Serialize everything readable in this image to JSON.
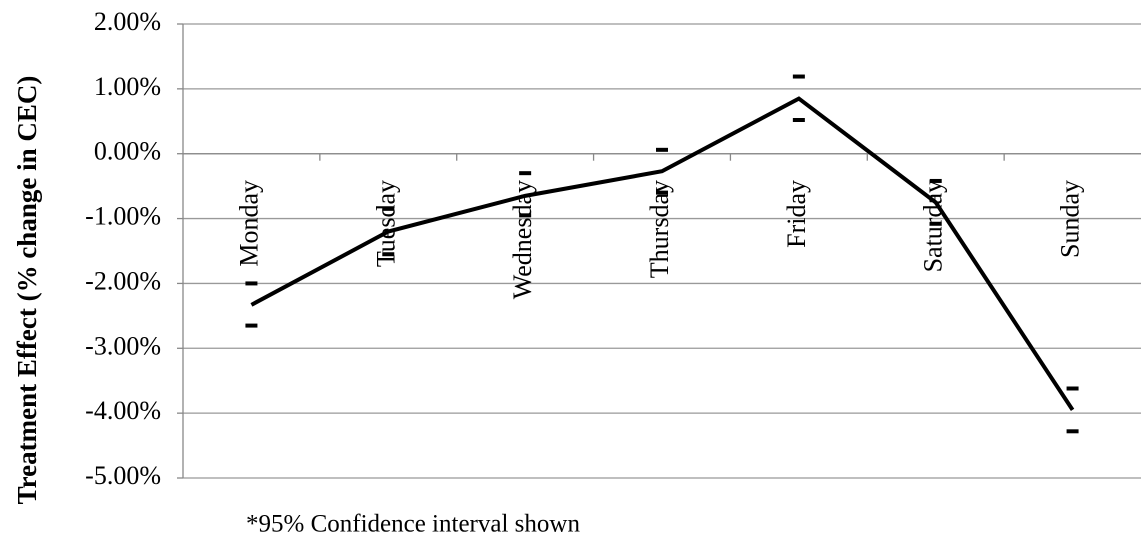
{
  "chart_data": {
    "type": "line",
    "y_label": "Treatment Effect (% change in CEC)",
    "note": "*95% Confidence interval shown",
    "categories": [
      "Monday",
      "Tuesday",
      "Wednesday",
      "Thursday",
      "Friday",
      "Saturday",
      "Sunday"
    ],
    "values": [
      -2.33,
      -1.2,
      -0.65,
      -0.27,
      0.85,
      -0.75,
      -3.95
    ],
    "ci_upper": [
      -2.0,
      -0.85,
      -0.3,
      0.06,
      1.19,
      -0.42,
      -3.62
    ],
    "ci_lower": [
      -2.65,
      -1.55,
      -0.95,
      -0.6,
      0.52,
      -1.08,
      -4.28
    ],
    "color": "#000000",
    "ylim": [
      -5,
      2
    ],
    "yticks": [
      {
        "value": -5,
        "label": "-5.00%"
      },
      {
        "value": -4,
        "label": "-4.00%"
      },
      {
        "value": -3,
        "label": "-3.00%"
      },
      {
        "value": -2,
        "label": "-2.00%"
      },
      {
        "value": -1,
        "label": "-1.00%"
      },
      {
        "value": 0,
        "label": "0.00%"
      },
      {
        "value": 1,
        "label": "1.00%"
      },
      {
        "value": 2,
        "label": "2.00%"
      }
    ],
    "grid": true
  }
}
